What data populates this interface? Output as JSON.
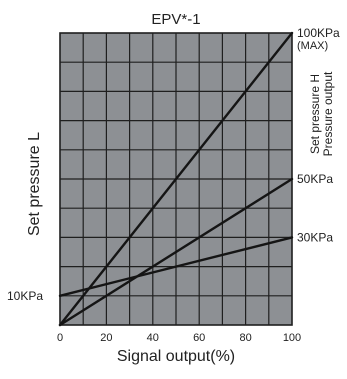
{
  "chart_data": {
    "type": "line",
    "title": "EPV*-1",
    "xlabel": "Signal output(%)",
    "ylabel": "Set pressure L",
    "right_label_line1": "Set pressure H",
    "right_label_line2": "Pressure output",
    "x_ticks": [
      0,
      20,
      40,
      60,
      80,
      100
    ],
    "xlim": [
      0,
      100
    ],
    "ylim": [
      0,
      100
    ],
    "grid": true,
    "series": [
      {
        "name": "100KPa",
        "x": [
          0,
          100
        ],
        "y": [
          0,
          100
        ],
        "label": "100KPa",
        "label_sub": "(MAX)"
      },
      {
        "name": "50KPa",
        "x": [
          0,
          100
        ],
        "y": [
          0,
          50
        ],
        "label": "50KPa",
        "label_sub": ""
      },
      {
        "name": "30KPa",
        "x": [
          0,
          100
        ],
        "y": [
          10,
          30
        ],
        "label": "30KPa",
        "label_sub": ""
      }
    ],
    "left_annotation": {
      "text": "10KPa",
      "y": 10
    }
  },
  "colors": {
    "plot_bg": "#8d9094",
    "grid": "#1f1f1f",
    "line": "#151515",
    "text": "#222222"
  }
}
